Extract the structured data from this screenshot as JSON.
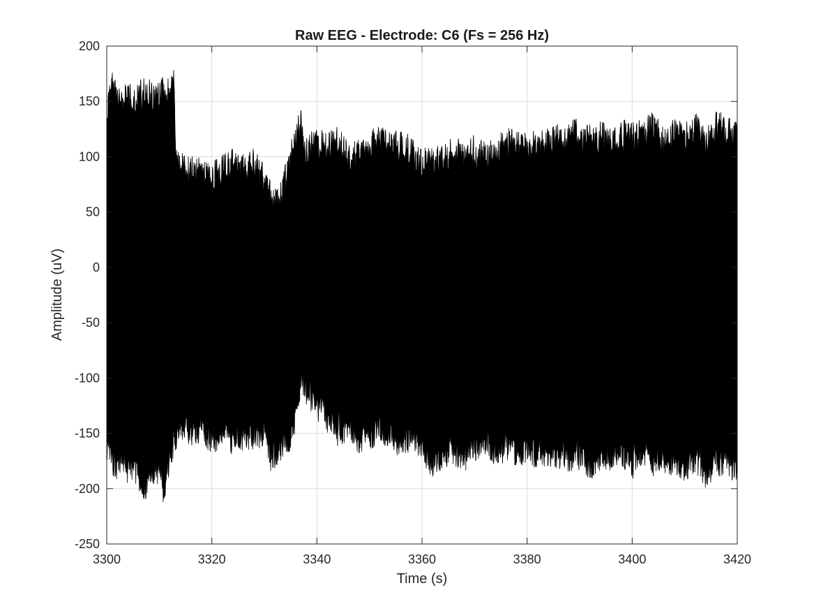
{
  "chart_data": {
    "type": "line",
    "title": "Raw EEG - Electrode: C6 (Fs = 256 Hz)",
    "xlabel": "Time (s)",
    "ylabel": "Amplitude (uV)",
    "xlim": [
      3300,
      3420
    ],
    "ylim": [
      -250,
      200
    ],
    "x_ticks": [
      3300,
      3320,
      3340,
      3360,
      3380,
      3400,
      3420
    ],
    "y_ticks": [
      -250,
      -200,
      -150,
      -100,
      -50,
      0,
      50,
      100,
      150,
      200
    ],
    "x_tick_labels": [
      "3300",
      "3320",
      "3340",
      "3360",
      "3380",
      "3400",
      "3420"
    ],
    "y_tick_labels": [
      "-250",
      "-200",
      "-150",
      "-100",
      "-50",
      "0",
      "50",
      "100",
      "150",
      "200"
    ],
    "grid": true,
    "sampling_rate_hz": 256,
    "series": [
      {
        "color": "#000000",
        "upper_envelope": {
          "x": [
            3300,
            3301,
            3302,
            3303,
            3304,
            3305,
            3306,
            3307,
            3308,
            3309,
            3310,
            3311,
            3312,
            3312.9,
            3313.1,
            3314,
            3316,
            3318,
            3320,
            3322,
            3324,
            3326,
            3328,
            3329,
            3330,
            3331,
            3332,
            3333,
            3334,
            3335,
            3336,
            3336.8,
            3337.5,
            3338,
            3340,
            3342,
            3344,
            3346,
            3348,
            3350,
            3352,
            3354,
            3356,
            3358,
            3360,
            3362,
            3364,
            3366,
            3368,
            3370,
            3372,
            3374,
            3376,
            3378,
            3380,
            3382,
            3384,
            3386,
            3388,
            3389,
            3390,
            3392,
            3394,
            3396,
            3398,
            3400,
            3402,
            3404,
            3406,
            3408,
            3410,
            3412,
            3414,
            3416,
            3418,
            3420
          ],
          "y": [
            150,
            185,
            168,
            160,
            172,
            162,
            166,
            175,
            170,
            168,
            172,
            176,
            168,
            182,
            112,
            105,
            100,
            102,
            95,
            104,
            110,
            103,
            108,
            104,
            92,
            80,
            72,
            78,
            96,
            115,
            127,
            150,
            128,
            120,
            126,
            123,
            128,
            112,
            116,
            124,
            130,
            122,
            125,
            118,
            108,
            110,
            112,
            118,
            115,
            120,
            113,
            118,
            128,
            124,
            122,
            128,
            126,
            130,
            130,
            145,
            126,
            130,
            132,
            128,
            135,
            131,
            134,
            142,
            126,
            135,
            130,
            140,
            128,
            144,
            138,
            135
          ]
        },
        "lower_envelope": {
          "x": [
            3300,
            3301,
            3302,
            3303,
            3304,
            3305,
            3306,
            3307,
            3308,
            3309,
            3310,
            3311,
            3312,
            3313,
            3314,
            3316,
            3318,
            3320,
            3322,
            3324,
            3326,
            3328,
            3329,
            3330,
            3331,
            3332,
            3333,
            3334,
            3335,
            3336,
            3337,
            3338,
            3340,
            3342,
            3344,
            3346,
            3348,
            3350,
            3352,
            3354,
            3356,
            3358,
            3360,
            3362,
            3364,
            3366,
            3368,
            3370,
            3372,
            3374,
            3376,
            3378,
            3380,
            3382,
            3384,
            3386,
            3388,
            3390,
            3392,
            3394,
            3396,
            3398,
            3400,
            3402,
            3404,
            3406,
            3408,
            3410,
            3412,
            3414,
            3416,
            3418,
            3420
          ],
          "y": [
            -178,
            -188,
            -192,
            -186,
            -196,
            -192,
            -200,
            -218,
            -205,
            -198,
            -195,
            -222,
            -182,
            -168,
            -158,
            -162,
            -158,
            -170,
            -163,
            -170,
            -168,
            -165,
            -165,
            -160,
            -185,
            -182,
            -175,
            -172,
            -165,
            -148,
            -110,
            -128,
            -140,
            -150,
            -162,
            -158,
            -170,
            -165,
            -160,
            -168,
            -174,
            -165,
            -178,
            -190,
            -182,
            -178,
            -186,
            -175,
            -172,
            -180,
            -176,
            -180,
            -178,
            -182,
            -180,
            -182,
            -185,
            -186,
            -192,
            -184,
            -188,
            -180,
            -192,
            -180,
            -190,
            -188,
            -190,
            -195,
            -186,
            -200,
            -190,
            -188,
            -198
          ]
        }
      }
    ]
  }
}
